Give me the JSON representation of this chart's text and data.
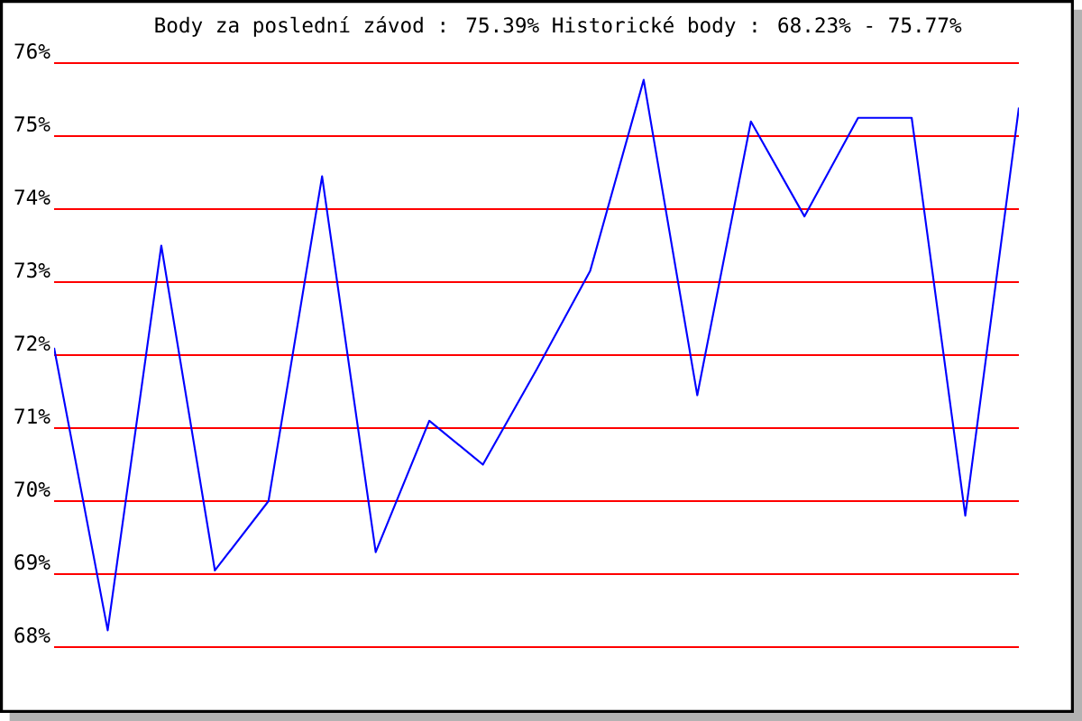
{
  "chart_data": {
    "type": "line",
    "title": "Body za poslední závod : 75.39%  Historické body : 68.23% - 75.77%",
    "categories": [
      null,
      null,
      null,
      null,
      null,
      null,
      null,
      null,
      null,
      null,
      null,
      null,
      null,
      null,
      null,
      null,
      null,
      null,
      null
    ],
    "series": [
      {
        "color": "#0000ff",
        "values": [
          72.1,
          68.23,
          73.5,
          69.05,
          70.0,
          74.45,
          69.3,
          71.1,
          70.5,
          71.8,
          73.15,
          75.77,
          71.45,
          75.2,
          73.9,
          75.25,
          75.25,
          69.8,
          75.39
        ]
      }
    ],
    "ylim": [
      68,
      76
    ],
    "yticks": [
      {
        "value": 68,
        "label": "68%"
      },
      {
        "value": 69,
        "label": "69%"
      },
      {
        "value": 70,
        "label": "70%"
      },
      {
        "value": 71,
        "label": "71%"
      },
      {
        "value": 72,
        "label": "72%"
      },
      {
        "value": 73,
        "label": "73%"
      },
      {
        "value": 74,
        "label": "74%"
      },
      {
        "value": 75,
        "label": "75%"
      },
      {
        "value": 76,
        "label": "76%"
      }
    ],
    "grid": "y",
    "tick_labels": "y",
    "marker": "none",
    "line_style": "solid"
  }
}
